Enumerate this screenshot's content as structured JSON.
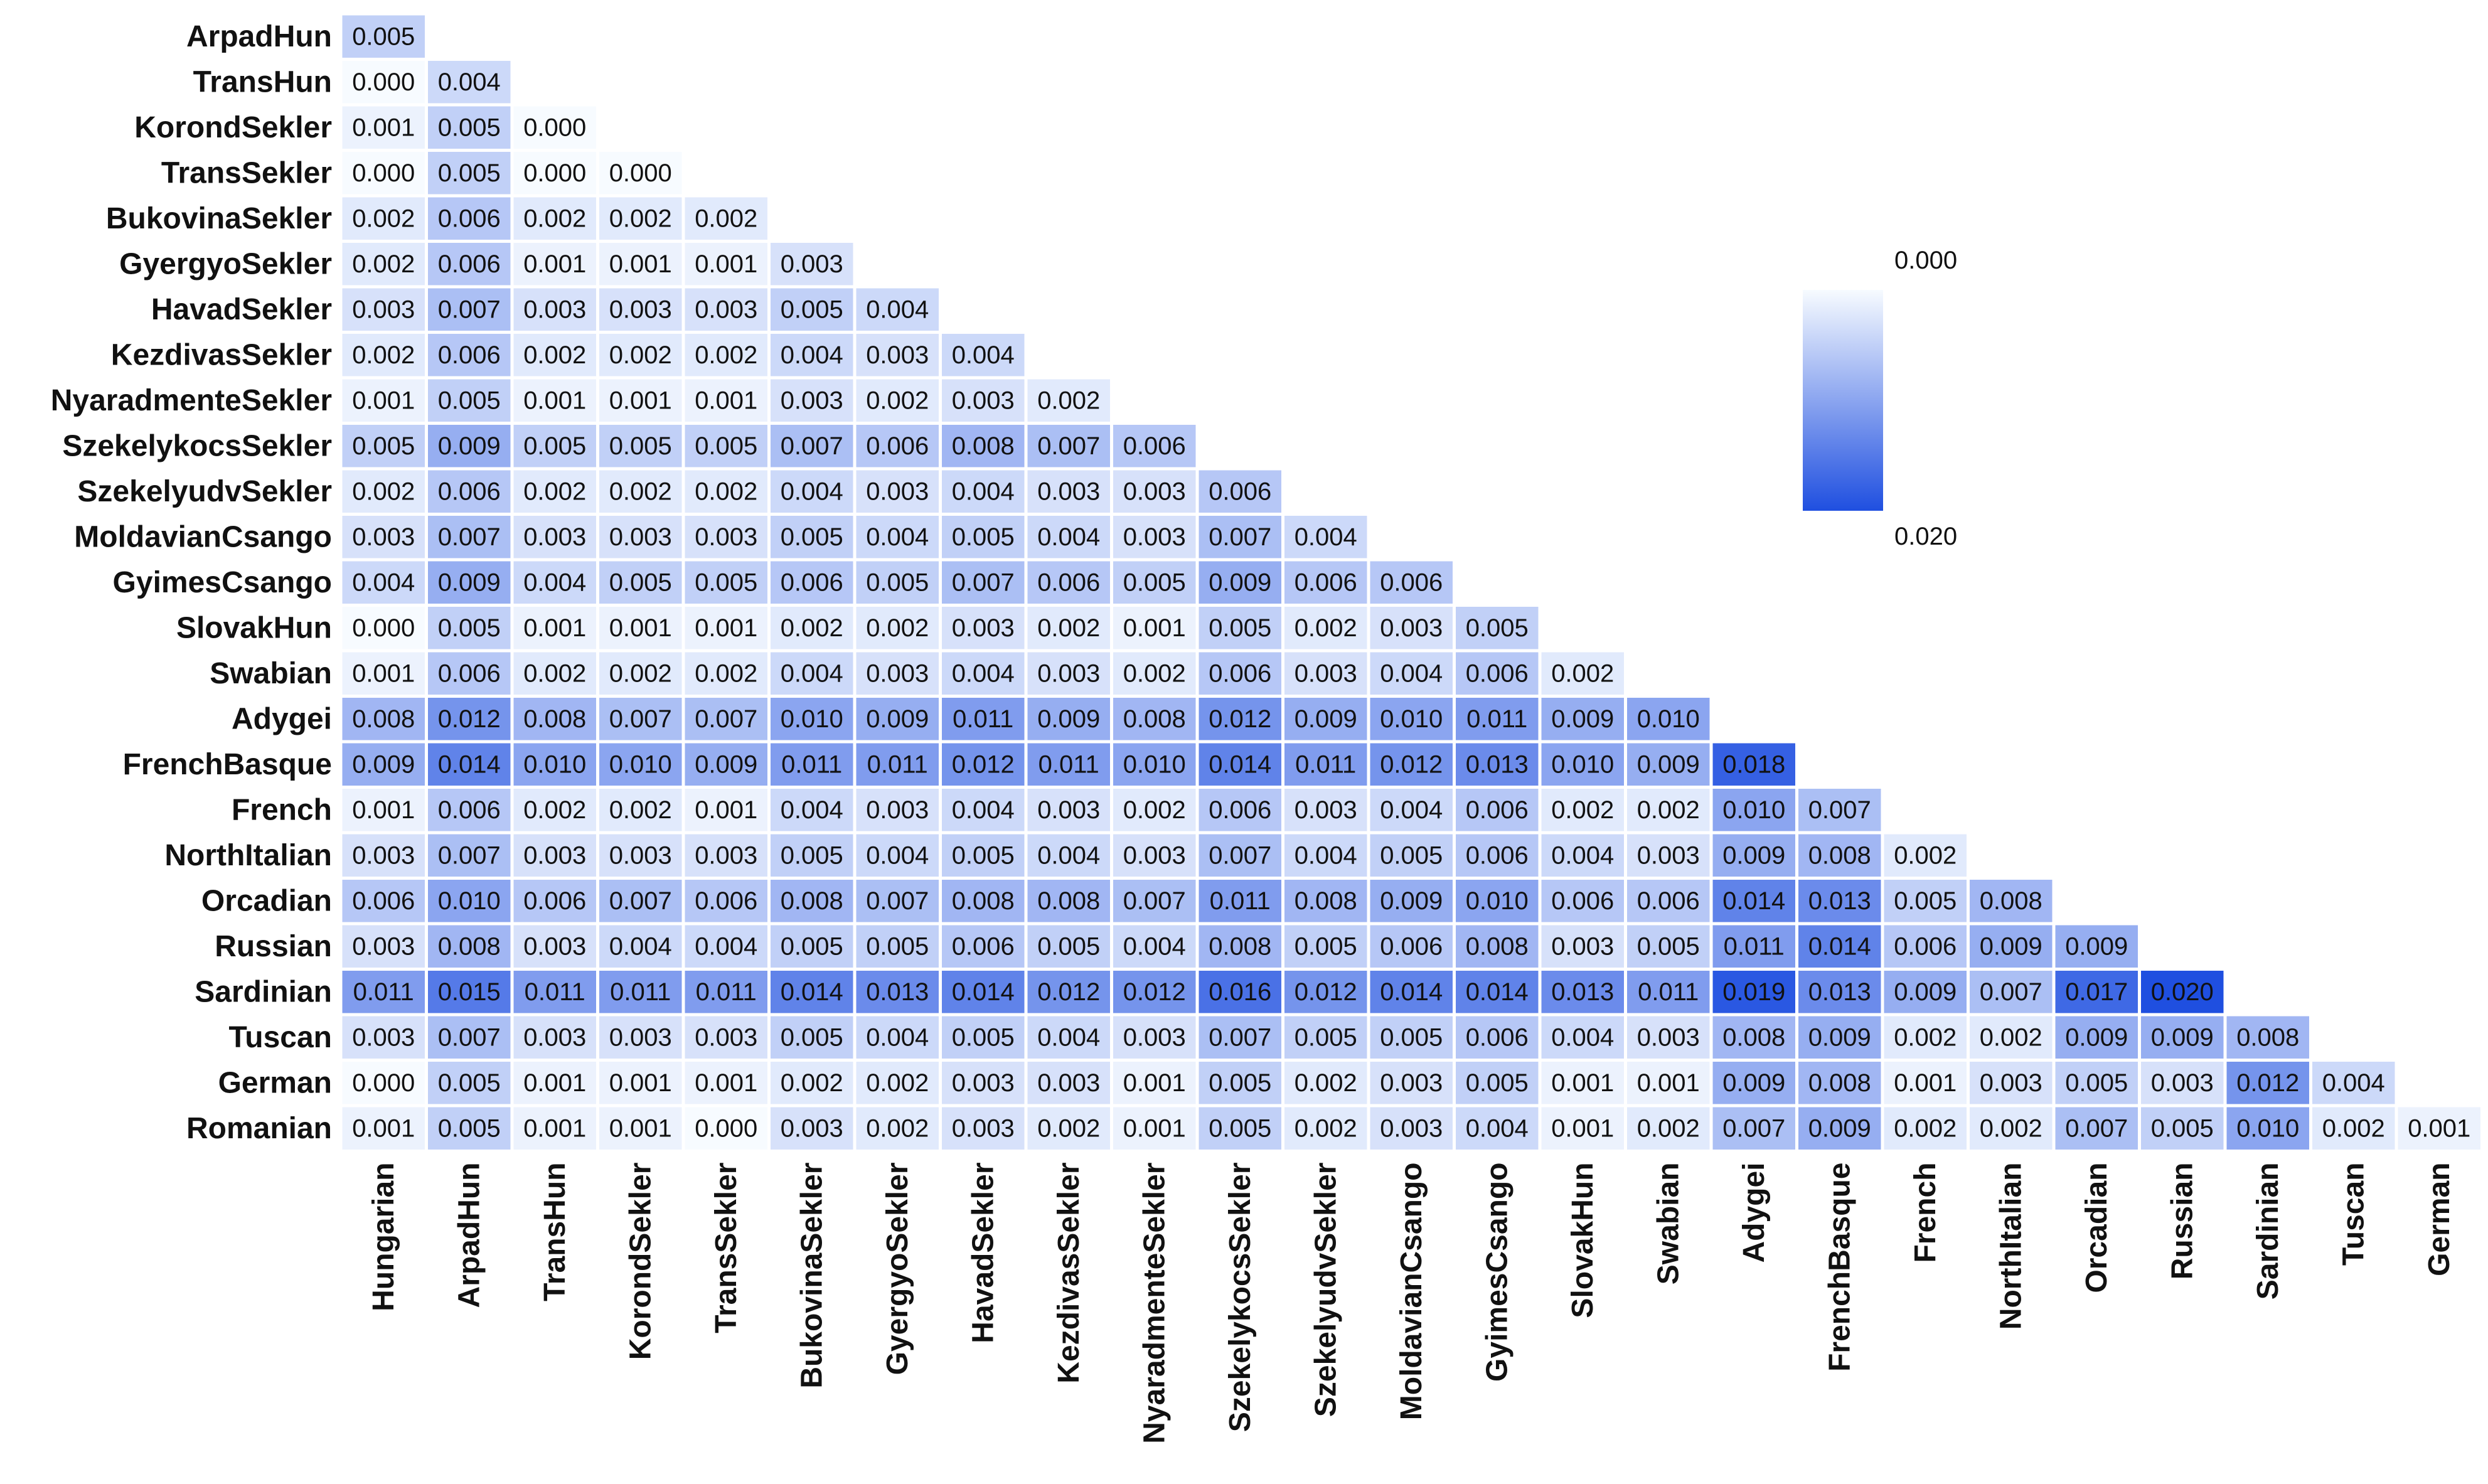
{
  "chart_data": {
    "type": "heatmap",
    "title": "",
    "xlabel": "",
    "ylabel": "",
    "row_labels": [
      "ArpadHun",
      "TransHun",
      "KorondSekler",
      "TransSekler",
      "BukovinaSekler",
      "GyergyoSekler",
      "HavadSekler",
      "KezdivasSekler",
      "NyaradmenteSekler",
      "SzekelykocsSekler",
      "SzekelyudvSekler",
      "MoldavianCsango",
      "GyimesCsango",
      "SlovakHun",
      "Swabian",
      "Adygei",
      "FrenchBasque",
      "French",
      "NorthItalian",
      "Orcadian",
      "Russian",
      "Sardinian",
      "Tuscan",
      "German",
      "Romanian"
    ],
    "col_labels": [
      "Hungarian",
      "ArpadHun",
      "TransHun",
      "KorondSekler",
      "TransSekler",
      "BukovinaSekler",
      "GyergyoSekler",
      "HavadSekler",
      "KezdivasSekler",
      "NyaradmenteSekler",
      "SzekelykocsSekler",
      "SzekelyudvSekler",
      "MoldavianCsango",
      "GyimesCsango",
      "SlovakHun",
      "Swabian",
      "Adygei",
      "FrenchBasque",
      "French",
      "NorthItalian",
      "Orcadian",
      "Russian",
      "Sardinian",
      "Tuscan",
      "German"
    ],
    "values": [
      [
        "0.005"
      ],
      [
        "0.000",
        "0.004"
      ],
      [
        "0.001",
        "0.005",
        "0.000"
      ],
      [
        "0.000",
        "0.005",
        "0.000",
        "0.000"
      ],
      [
        "0.002",
        "0.006",
        "0.002",
        "0.002",
        "0.002"
      ],
      [
        "0.002",
        "0.006",
        "0.001",
        "0.001",
        "0.001",
        "0.003"
      ],
      [
        "0.003",
        "0.007",
        "0.003",
        "0.003",
        "0.003",
        "0.005",
        "0.004"
      ],
      [
        "0.002",
        "0.006",
        "0.002",
        "0.002",
        "0.002",
        "0.004",
        "0.003",
        "0.004"
      ],
      [
        "0.001",
        "0.005",
        "0.001",
        "0.001",
        "0.001",
        "0.003",
        "0.002",
        "0.003",
        "0.002"
      ],
      [
        "0.005",
        "0.009",
        "0.005",
        "0.005",
        "0.005",
        "0.007",
        "0.006",
        "0.008",
        "0.007",
        "0.006"
      ],
      [
        "0.002",
        "0.006",
        "0.002",
        "0.002",
        "0.002",
        "0.004",
        "0.003",
        "0.004",
        "0.003",
        "0.003",
        "0.006"
      ],
      [
        "0.003",
        "0.007",
        "0.003",
        "0.003",
        "0.003",
        "0.005",
        "0.004",
        "0.005",
        "0.004",
        "0.003",
        "0.007",
        "0.004"
      ],
      [
        "0.004",
        "0.009",
        "0.004",
        "0.005",
        "0.005",
        "0.006",
        "0.005",
        "0.007",
        "0.006",
        "0.005",
        "0.009",
        "0.006",
        "0.006"
      ],
      [
        "0.000",
        "0.005",
        "0.001",
        "0.001",
        "0.001",
        "0.002",
        "0.002",
        "0.003",
        "0.002",
        "0.001",
        "0.005",
        "0.002",
        "0.003",
        "0.005"
      ],
      [
        "0.001",
        "0.006",
        "0.002",
        "0.002",
        "0.002",
        "0.004",
        "0.003",
        "0.004",
        "0.003",
        "0.002",
        "0.006",
        "0.003",
        "0.004",
        "0.006",
        "0.002"
      ],
      [
        "0.008",
        "0.012",
        "0.008",
        "0.007",
        "0.007",
        "0.010",
        "0.009",
        "0.011",
        "0.009",
        "0.008",
        "0.012",
        "0.009",
        "0.010",
        "0.011",
        "0.009",
        "0.010"
      ],
      [
        "0.009",
        "0.014",
        "0.010",
        "0.010",
        "0.009",
        "0.011",
        "0.011",
        "0.012",
        "0.011",
        "0.010",
        "0.014",
        "0.011",
        "0.012",
        "0.013",
        "0.010",
        "0.009",
        "0.018"
      ],
      [
        "0.001",
        "0.006",
        "0.002",
        "0.002",
        "0.001",
        "0.004",
        "0.003",
        "0.004",
        "0.003",
        "0.002",
        "0.006",
        "0.003",
        "0.004",
        "0.006",
        "0.002",
        "0.002",
        "0.010",
        "0.007"
      ],
      [
        "0.003",
        "0.007",
        "0.003",
        "0.003",
        "0.003",
        "0.005",
        "0.004",
        "0.005",
        "0.004",
        "0.003",
        "0.007",
        "0.004",
        "0.005",
        "0.006",
        "0.004",
        "0.003",
        "0.009",
        "0.008",
        "0.002"
      ],
      [
        "0.006",
        "0.010",
        "0.006",
        "0.007",
        "0.006",
        "0.008",
        "0.007",
        "0.008",
        "0.008",
        "0.007",
        "0.011",
        "0.008",
        "0.009",
        "0.010",
        "0.006",
        "0.006",
        "0.014",
        "0.013",
        "0.005",
        "0.008"
      ],
      [
        "0.003",
        "0.008",
        "0.003",
        "0.004",
        "0.004",
        "0.005",
        "0.005",
        "0.006",
        "0.005",
        "0.004",
        "0.008",
        "0.005",
        "0.006",
        "0.008",
        "0.003",
        "0.005",
        "0.011",
        "0.014",
        "0.006",
        "0.009",
        "0.009"
      ],
      [
        "0.011",
        "0.015",
        "0.011",
        "0.011",
        "0.011",
        "0.014",
        "0.013",
        "0.014",
        "0.012",
        "0.012",
        "0.016",
        "0.012",
        "0.014",
        "0.014",
        "0.013",
        "0.011",
        "0.019",
        "0.013",
        "0.009",
        "0.007",
        "0.017",
        "0.020"
      ],
      [
        "0.003",
        "0.007",
        "0.003",
        "0.003",
        "0.003",
        "0.005",
        "0.004",
        "0.005",
        "0.004",
        "0.003",
        "0.007",
        "0.005",
        "0.005",
        "0.006",
        "0.004",
        "0.003",
        "0.008",
        "0.009",
        "0.002",
        "0.002",
        "0.009",
        "0.009",
        "0.008"
      ],
      [
        "0.000",
        "0.005",
        "0.001",
        "0.001",
        "0.001",
        "0.002",
        "0.002",
        "0.003",
        "0.003",
        "0.001",
        "0.005",
        "0.002",
        "0.003",
        "0.005",
        "0.001",
        "0.001",
        "0.009",
        "0.008",
        "0.001",
        "0.003",
        "0.005",
        "0.003",
        "0.012",
        "0.004"
      ],
      [
        "0.001",
        "0.005",
        "0.001",
        "0.001",
        "0.000",
        "0.003",
        "0.002",
        "0.003",
        "0.002",
        "0.001",
        "0.005",
        "0.002",
        "0.003",
        "0.004",
        "0.001",
        "0.002",
        "0.007",
        "0.009",
        "0.002",
        "0.002",
        "0.007",
        "0.005",
        "0.010",
        "0.002",
        "0.001"
      ]
    ],
    "colorbar": {
      "min": 0.0,
      "max": 0.02,
      "min_label": "0.000",
      "max_label": "0.020",
      "color_low": "#f7fbff",
      "color_high": "#1f4fe0"
    },
    "legend_position": "right",
    "grid": false
  }
}
